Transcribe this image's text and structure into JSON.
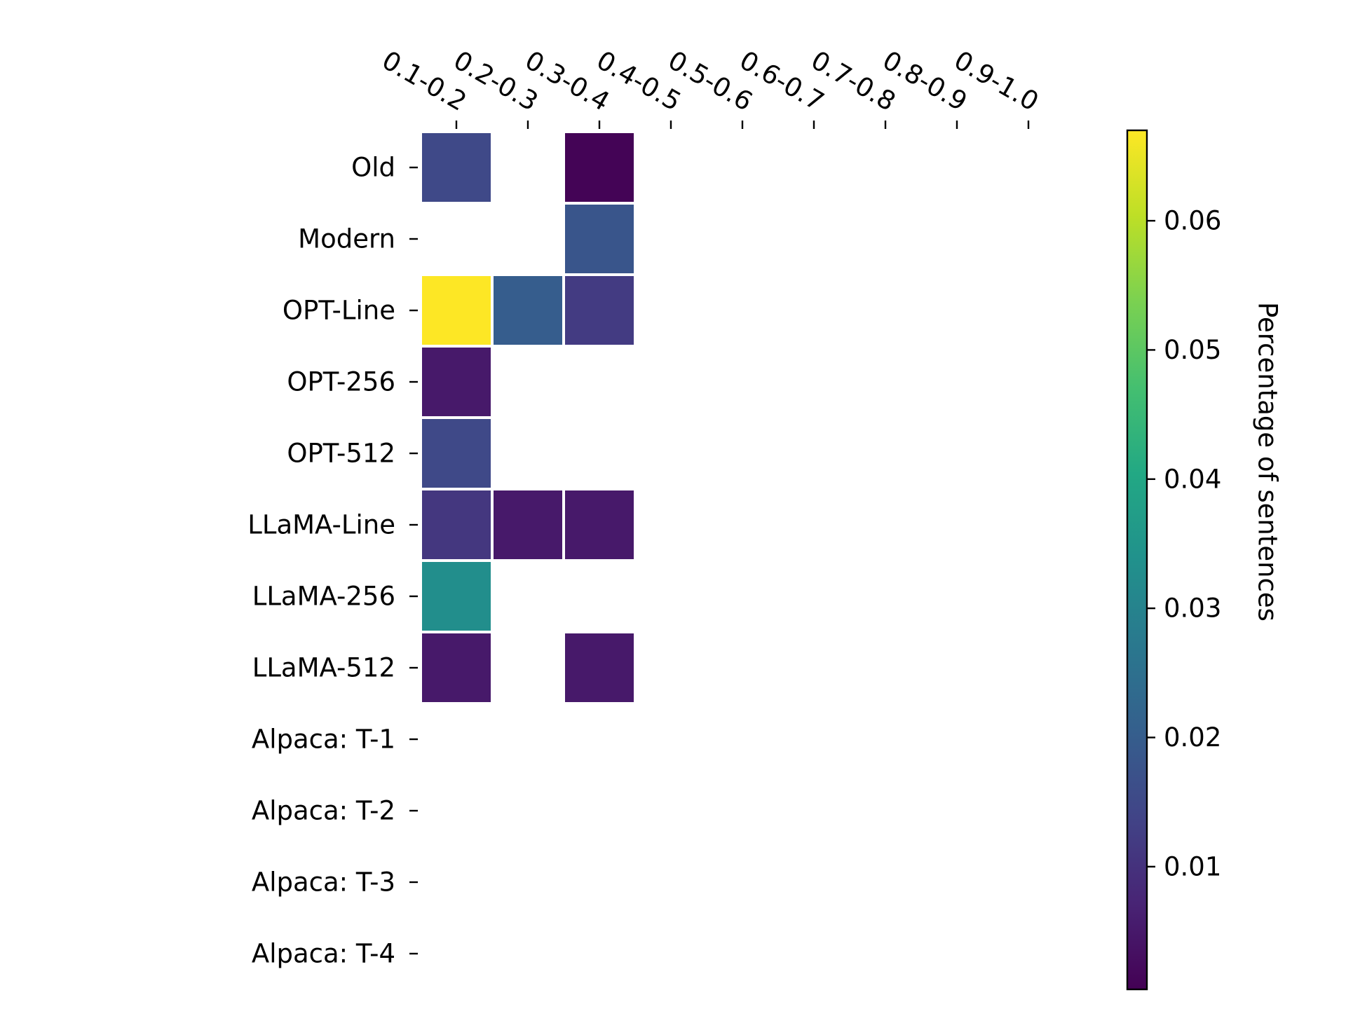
{
  "chart_data": {
    "type": "heatmap",
    "title": "",
    "xlabel": "",
    "ylabel": "",
    "x_categories": [
      "0.1-0.2",
      "0.2-0.3",
      "0.3-0.4",
      "0.4-0.5",
      "0.5-0.6",
      "0.6-0.7",
      "0.7-0.8",
      "0.8-0.9",
      "0.9-1.0"
    ],
    "y_categories": [
      "Old",
      "Modern",
      "OPT-Line",
      "OPT-256",
      "OPT-512",
      "LLaMA-Line",
      "LLaMA-256",
      "LLaMA-512",
      "Alpaca: T-1",
      "Alpaca: T-2",
      "Alpaca: T-3",
      "Alpaca: T-4"
    ],
    "values": [
      [
        0.015,
        null,
        0.001,
        null,
        null,
        null,
        null,
        null,
        null
      ],
      [
        null,
        null,
        0.018,
        null,
        null,
        null,
        null,
        null,
        null
      ],
      [
        0.067,
        0.02,
        0.012,
        null,
        null,
        null,
        null,
        null,
        null
      ],
      [
        0.005,
        null,
        null,
        null,
        null,
        null,
        null,
        null,
        null
      ],
      [
        0.015,
        null,
        null,
        null,
        null,
        null,
        null,
        null,
        null
      ],
      [
        0.011,
        0.005,
        0.005,
        null,
        null,
        null,
        null,
        null,
        null
      ],
      [
        0.033,
        null,
        null,
        null,
        null,
        null,
        null,
        null,
        null
      ],
      [
        0.005,
        null,
        0.005,
        null,
        null,
        null,
        null,
        null,
        null
      ],
      [
        null,
        null,
        null,
        null,
        null,
        null,
        null,
        null,
        null
      ],
      [
        null,
        null,
        null,
        null,
        null,
        null,
        null,
        null,
        null
      ],
      [
        null,
        null,
        null,
        null,
        null,
        null,
        null,
        null,
        null
      ],
      [
        null,
        null,
        null,
        null,
        null,
        null,
        null,
        null,
        null
      ]
    ],
    "colorbar": {
      "label": "Percentage of sentences",
      "colormap": "viridis",
      "range": [
        0.0005,
        0.067
      ],
      "ticks": [
        0.01,
        0.02,
        0.03,
        0.04,
        0.05,
        0.06
      ],
      "tick_labels": [
        "0.01",
        "0.02",
        "0.03",
        "0.04",
        "0.05",
        "0.06"
      ]
    },
    "x_axis_position": "top",
    "grid": false,
    "cell_edge_color": "#ffffff"
  }
}
